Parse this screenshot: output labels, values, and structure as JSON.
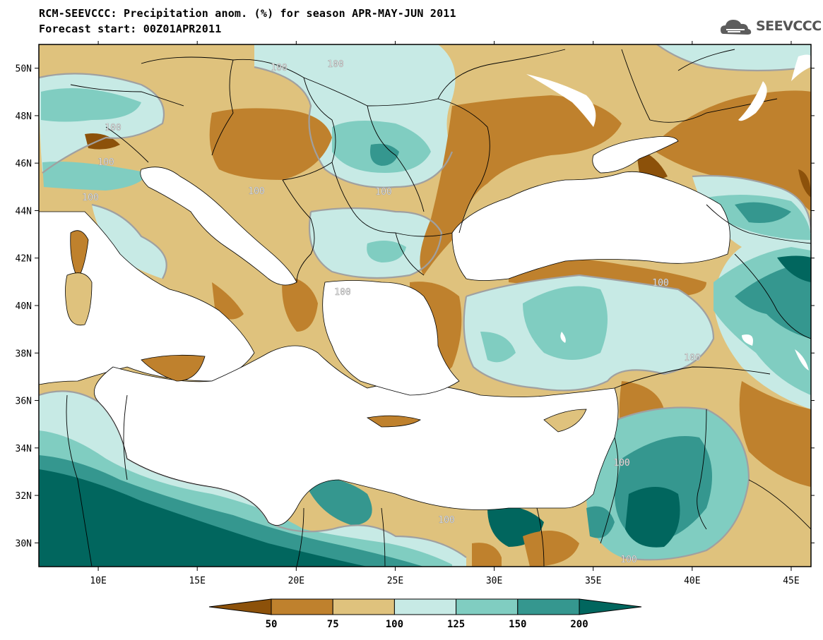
{
  "title": {
    "line1": "RCM-SEEVCCC: Precipitation anom. (%) for season APR-MAY-JUN 2011",
    "line2": "Forecast start: 00Z01APR2011"
  },
  "logo": {
    "text": "SEEVCCC",
    "icon": "cloud-icon"
  },
  "map": {
    "lon_range": [
      7,
      46
    ],
    "lat_range": [
      29,
      51
    ],
    "lon_ticks": [
      "10E",
      "15E",
      "20E",
      "25E",
      "30E",
      "35E",
      "40E",
      "45E"
    ],
    "lat_ticks": [
      "50N",
      "48N",
      "46N",
      "44N",
      "42N",
      "40N",
      "38N",
      "36N",
      "34N",
      "32N",
      "30N"
    ],
    "contour_labels": [
      "100",
      "100",
      "100",
      "100",
      "100",
      "100",
      "100",
      "100",
      "100",
      "100",
      "100",
      "100",
      "100"
    ]
  },
  "colorbar": {
    "levels": [
      "50",
      "75",
      "100",
      "125",
      "150",
      "200"
    ],
    "colors": [
      "#8c510a",
      "#bf812d",
      "#dfc27d",
      "#c7eae5",
      "#80cdc1",
      "#35978f",
      "#01665e"
    ]
  }
}
